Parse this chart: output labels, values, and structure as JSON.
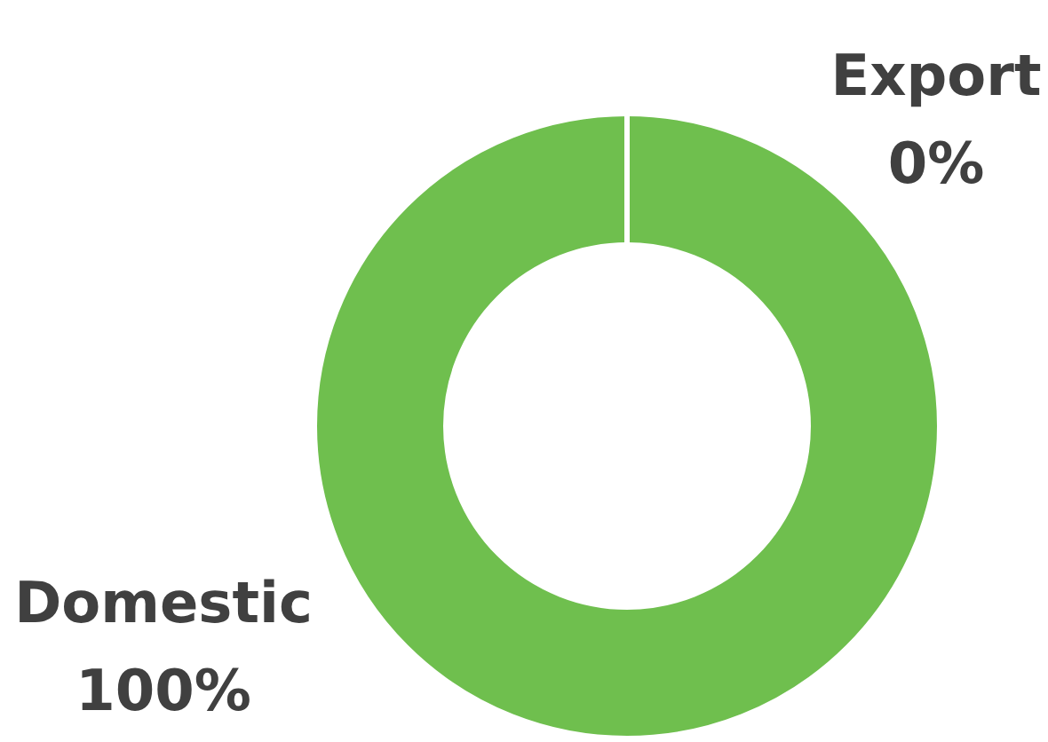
{
  "chart_data": {
    "type": "donut",
    "categories": [
      "Domestic",
      "Export"
    ],
    "values": [
      100,
      0
    ],
    "colors": [
      "#6fbf4e",
      "#5b9bd5"
    ],
    "value_labels": [
      "100%",
      "0%"
    ]
  }
}
